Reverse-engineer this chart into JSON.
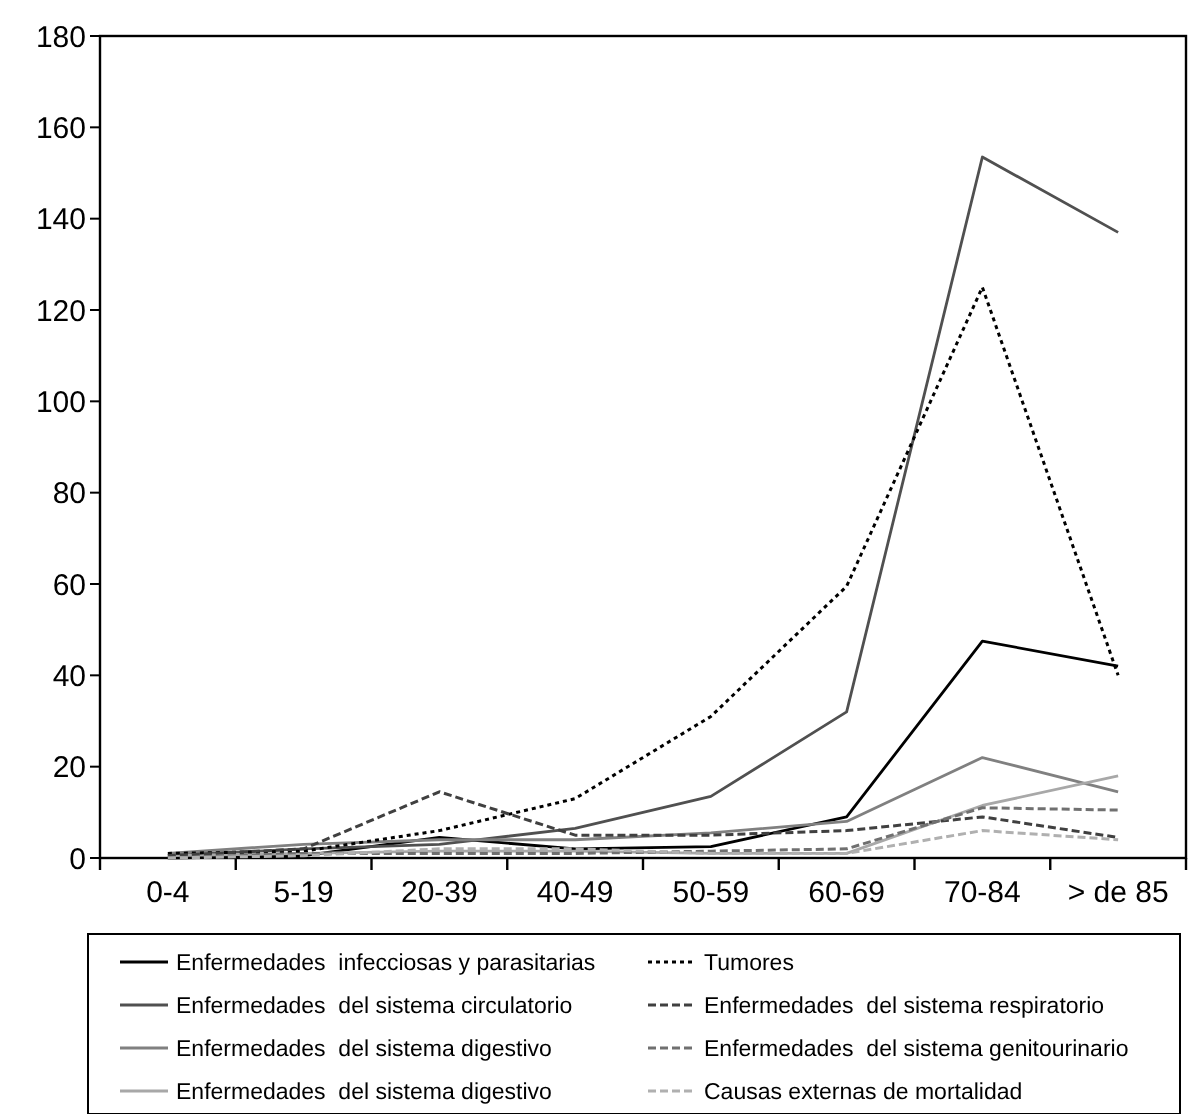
{
  "chart_data": {
    "type": "line",
    "categories": [
      "0-4",
      "5-19",
      "20-39",
      "40-49",
      "50-59",
      "60-69",
      "70-84",
      "> de 85"
    ],
    "ylim": [
      0,
      180
    ],
    "yticks": [
      0,
      20,
      40,
      60,
      80,
      100,
      120,
      140,
      160,
      180
    ],
    "grid": false,
    "legend": "bottom",
    "marker": "none",
    "series": [
      {
        "name": "Enfermedades  infecciosas y parasitarias",
        "color": "#000000",
        "line_style": "solid",
        "values": [
          0,
          0.5,
          4.5,
          2,
          2.5,
          9,
          47.5,
          42
        ]
      },
      {
        "name": "Enfermedades  del sistema circulatorio",
        "color": "#505050",
        "line_style": "solid",
        "values": [
          0.5,
          2,
          3,
          6.5,
          13.5,
          32,
          153.5,
          137
        ]
      },
      {
        "name": "Enfermedades  del sistema digestivo",
        "color": "#808080",
        "line_style": "solid",
        "values": [
          1,
          3,
          4,
          4,
          5.5,
          8,
          22,
          14.5
        ]
      },
      {
        "name": "Enfermedades  del sistema digestivo",
        "color": "#a8a8a8",
        "line_style": "solid",
        "values": [
          0.5,
          1,
          1.5,
          1.5,
          1,
          1,
          11.5,
          18
        ]
      },
      {
        "name": "Tumores",
        "color": "#000000",
        "line_style": "dotted",
        "values": [
          1,
          1.5,
          6,
          13,
          31,
          59.5,
          125,
          40
        ]
      },
      {
        "name": "Enfermedades  del sistema respiratorio",
        "color": "#404040",
        "line_style": "dashed",
        "values": [
          0.5,
          2,
          14.5,
          5,
          5,
          6,
          9,
          4.5
        ]
      },
      {
        "name": "Enfermedades  del sistema genitourinario",
        "color": "#707070",
        "line_style": "dashed",
        "values": [
          0,
          1,
          1,
          1,
          1.5,
          2,
          11,
          10.5
        ]
      },
      {
        "name": "Causas externas de mortalidad",
        "color": "#b0b0b0",
        "line_style": "dashed",
        "values": [
          0,
          0.5,
          2,
          2,
          1,
          1,
          6,
          4
        ]
      }
    ]
  }
}
